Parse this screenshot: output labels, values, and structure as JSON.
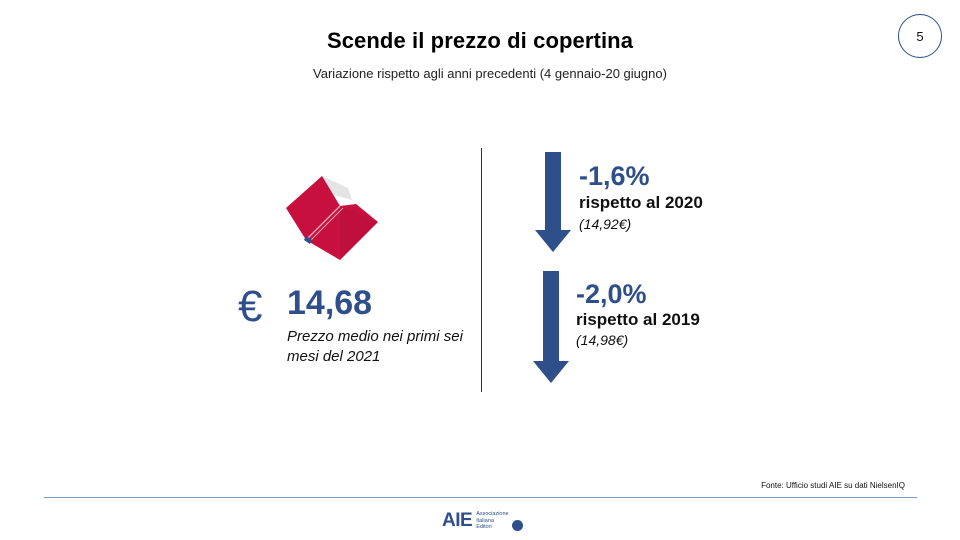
{
  "header": {
    "title": "Scende il prezzo di copertina",
    "subtitle": "Variazione rispetto agli anni precedenti (4 gennaio-20 giugno)",
    "page_number": "5"
  },
  "price": {
    "currency_symbol": "€",
    "value": "14,68",
    "description": "Prezzo medio nei primi sei mesi del 2021"
  },
  "comparisons": [
    {
      "change": "-1,6%",
      "label": "rispetto al 2020",
      "previous": "(14,92€)"
    },
    {
      "change": "-2,0%",
      "label": "rispetto al 2019",
      "previous": "(14,98€)"
    }
  ],
  "footer": {
    "source": "Fonte: Ufficio studi AIE su dati NielsenIQ",
    "logo_text": "AIE",
    "logo_lines": [
      "Associazione",
      "Italiana",
      "Editori"
    ]
  },
  "colors": {
    "accent_blue": "#2e4f8a",
    "book_red": "#c8103e",
    "book_page": "#e2e2e2"
  },
  "icons": [
    "open-book-icon",
    "down-arrow-icon",
    "euro-icon"
  ]
}
